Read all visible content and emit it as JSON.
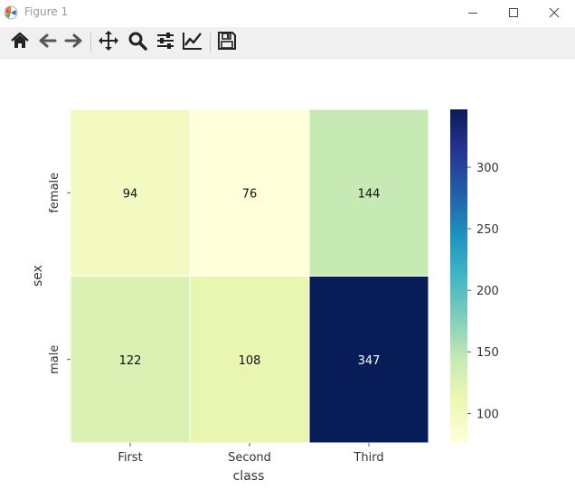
{
  "window": {
    "title": "Figure 1",
    "app_icon": "matplotlib-icon",
    "controls": [
      "minimize-icon",
      "maximize-icon",
      "close-icon"
    ]
  },
  "toolbar": {
    "buttons": [
      {
        "name": "home-button",
        "icon": "home-icon"
      },
      {
        "name": "back-button",
        "icon": "back-arrow-icon"
      },
      {
        "name": "forward-button",
        "icon": "forward-arrow-icon"
      },
      {
        "name": "pan-button",
        "icon": "move-icon"
      },
      {
        "name": "zoom-button",
        "icon": "zoom-icon"
      },
      {
        "name": "subplots-button",
        "icon": "sliders-icon"
      },
      {
        "name": "customize-button",
        "icon": "line-chart-icon"
      },
      {
        "name": "save-button",
        "icon": "save-icon"
      }
    ]
  },
  "chart_data": {
    "type": "heatmap",
    "xlabel": "class",
    "ylabel": "sex",
    "x_categories": [
      "First",
      "Second",
      "Third"
    ],
    "y_categories": [
      "female",
      "male"
    ],
    "values": [
      [
        94,
        76,
        144
      ],
      [
        122,
        108,
        347
      ]
    ],
    "colormap": "YlGnBu",
    "annotated": true,
    "colorbar": {
      "ticks": [
        100,
        150,
        200,
        250,
        300
      ],
      "range": [
        76,
        347
      ]
    },
    "colors": {
      "94": "#f2fac2",
      "76": "#ffffd9",
      "144": "#c7e9b4",
      "122": "#dbf1b4",
      "108": "#e8f6b1",
      "347": "#081d58"
    }
  }
}
